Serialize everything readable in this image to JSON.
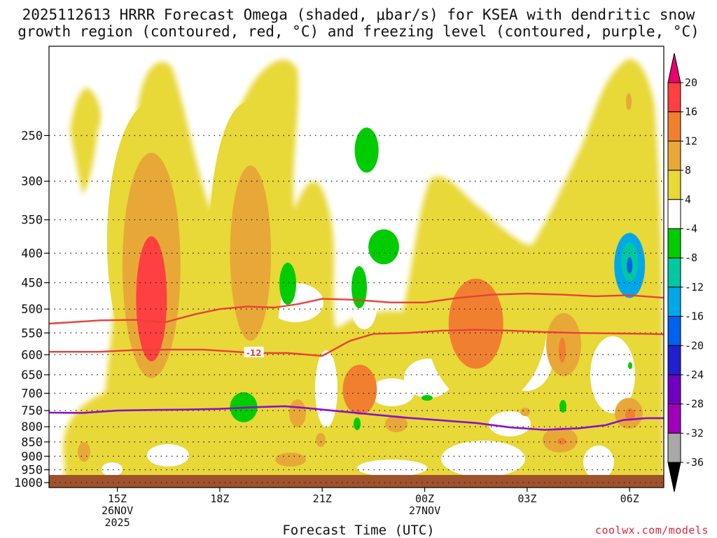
{
  "chart_data": {
    "type": "heatmap",
    "title_line1": "2025112613 HRRR Forecast Omega (shaded, μbar/s) for KSEA with dendritic snow",
    "title_line2": "growth region (contoured, red, °C) and freezing level (contoured, purple, °C)",
    "xlabel": "Forecast Time (UTC)",
    "x_range_hours": [
      13.0,
      31.0
    ],
    "x_ticks": [
      {
        "hour": 15,
        "label": "15Z",
        "sub1": "26NOV",
        "sub2": "2025"
      },
      {
        "hour": 18,
        "label": "18Z",
        "sub1": "",
        "sub2": ""
      },
      {
        "hour": 21,
        "label": "21Z",
        "sub1": "",
        "sub2": ""
      },
      {
        "hour": 24,
        "label": "00Z",
        "sub1": "27NOV",
        "sub2": ""
      },
      {
        "hour": 27,
        "label": "03Z",
        "sub1": "",
        "sub2": ""
      },
      {
        "hour": 30,
        "label": "06Z",
        "sub1": "",
        "sub2": ""
      }
    ],
    "y_axis": "pressure (hPa), log scale, inverted",
    "y_range_hpa": [
      1020,
      175
    ],
    "y_ticks": [
      250,
      300,
      350,
      400,
      450,
      500,
      550,
      600,
      650,
      700,
      750,
      800,
      850,
      900,
      950,
      1000
    ],
    "colorbar": {
      "units": "μbar/s",
      "labels": [
        "20",
        "16",
        "12",
        "8",
        "4",
        "-4",
        "-8",
        "-12",
        "-16",
        "-20",
        "-24",
        "-28",
        "-32",
        "-36"
      ],
      "bounds": [
        20,
        16,
        12,
        8,
        4,
        -4,
        -8,
        -12,
        -16,
        -20,
        -24,
        -28,
        -32,
        -36
      ],
      "colors": [
        "#e8006e",
        "#ff4040",
        "#f08030",
        "#e8a838",
        "#e8d838",
        "#ffffff",
        "#00cc00",
        "#00c8a0",
        "#00a8e8",
        "#0060f0",
        "#2020d0",
        "#7000c0",
        "#a000b8",
        "#a8a8a8",
        "#000000"
      ]
    },
    "omega_blobs": [
      {
        "name": "jet-plume-outer",
        "hour": 16.0,
        "hpa": 380,
        "dh": 1.3,
        "dp": 0.55,
        "value": 5
      },
      {
        "name": "jet-plume-mid",
        "hour": 16.0,
        "hpa": 420,
        "dh": 0.85,
        "dp": 0.45,
        "value": 9
      },
      {
        "name": "jet-plume-core",
        "hour": 16.0,
        "hpa": 480,
        "dh": 0.45,
        "dp": 0.25,
        "value": 17
      },
      {
        "name": "plume-18z-upper",
        "hour": 18.8,
        "hpa": 380,
        "dh": 1.1,
        "dp": 0.55,
        "value": 5
      },
      {
        "name": "plume-18z-core",
        "hour": 18.9,
        "hpa": 400,
        "dh": 0.6,
        "dp": 0.35,
        "value": 9
      },
      {
        "name": "pos-band-0030z",
        "hour": 25.8,
        "hpa": 520,
        "dh": 1.8,
        "dp": 0.35,
        "value": 5
      },
      {
        "name": "pos-core-0030z",
        "hour": 25.5,
        "hpa": 530,
        "dh": 0.8,
        "dp": 0.18,
        "value": 13
      },
      {
        "name": "pos-core-22z",
        "hour": 22.1,
        "hpa": 690,
        "dh": 0.5,
        "dp": 0.1,
        "value": 13
      },
      {
        "name": "neg-cell-2230z-top",
        "hour": 22.3,
        "hpa": 265,
        "dh": 0.35,
        "dp": 0.09,
        "value": -7
      },
      {
        "name": "neg-cell-2230z-mid",
        "hour": 22.8,
        "hpa": 390,
        "dh": 0.45,
        "dp": 0.07,
        "value": -7
      },
      {
        "name": "neg-cell-19z",
        "hour": 18.7,
        "hpa": 740,
        "dh": 0.4,
        "dp": 0.06,
        "value": -7
      },
      {
        "name": "neg-cell-06z",
        "hour": 30.0,
        "hpa": 420,
        "dh": 0.45,
        "dp": 0.13,
        "value": -14
      }
    ],
    "dgz_contours": [
      {
        "label": "",
        "points": [
          [
            13.0,
            530
          ],
          [
            14.5,
            523
          ],
          [
            15.5,
            522
          ],
          [
            16.4,
            527
          ],
          [
            17.3,
            510
          ],
          [
            18.0,
            500
          ],
          [
            18.8,
            495
          ],
          [
            19.6,
            497
          ],
          [
            20.3,
            490
          ],
          [
            21.0,
            480
          ],
          [
            22.0,
            482
          ],
          [
            23.0,
            487
          ],
          [
            24.0,
            487
          ],
          [
            25.0,
            478
          ],
          [
            26.0,
            472
          ],
          [
            27.0,
            470
          ],
          [
            28.0,
            472
          ],
          [
            29.0,
            475
          ],
          [
            30.0,
            473
          ],
          [
            31.0,
            478
          ]
        ]
      },
      {
        "label": "-12",
        "points": [
          [
            13.0,
            593
          ],
          [
            14.5,
            593
          ],
          [
            15.5,
            589
          ],
          [
            16.5,
            588
          ],
          [
            17.5,
            588
          ],
          [
            18.3,
            592
          ],
          [
            19.0,
            596
          ],
          [
            20.0,
            596
          ],
          [
            21.0,
            603
          ],
          [
            21.8,
            568
          ],
          [
            22.5,
            552
          ],
          [
            23.5,
            550
          ],
          [
            24.5,
            545
          ],
          [
            25.5,
            543
          ],
          [
            26.5,
            545
          ],
          [
            27.5,
            548
          ],
          [
            28.5,
            550
          ],
          [
            29.5,
            551
          ],
          [
            30.5,
            552
          ],
          [
            31.0,
            553
          ]
        ]
      }
    ],
    "freezing_level": {
      "label": "",
      "points": [
        [
          13.0,
          756
        ],
        [
          14.0,
          757
        ],
        [
          15.0,
          750
        ],
        [
          16.0,
          748
        ],
        [
          17.0,
          747
        ],
        [
          18.0,
          745
        ],
        [
          19.0,
          740
        ],
        [
          19.9,
          737
        ],
        [
          20.5,
          742
        ],
        [
          21.5,
          752
        ],
        [
          22.5,
          762
        ],
        [
          23.5,
          772
        ],
        [
          24.5,
          780
        ],
        [
          25.5,
          788
        ],
        [
          26.5,
          802
        ],
        [
          27.5,
          810
        ],
        [
          28.5,
          805
        ],
        [
          29.3,
          795
        ],
        [
          29.8,
          779
        ],
        [
          30.5,
          773
        ],
        [
          31.0,
          773
        ]
      ]
    },
    "terrain_color": "#a0522d"
  },
  "credit": "coolwx.com/models"
}
